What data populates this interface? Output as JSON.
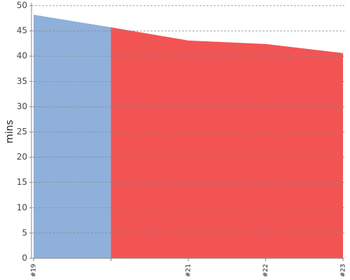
{
  "chart_data": {
    "type": "area",
    "y_label": "mins",
    "categories": [
      "#19",
      null,
      "#21",
      "#22",
      "#23"
    ],
    "values": [
      48.2,
      45.7,
      43.1,
      42.4,
      40.6
    ],
    "colors": [
      "#8fb0da",
      "#f25454",
      "#f25454",
      "#f25454",
      "#f25454"
    ],
    "ylim": [
      0,
      50
    ],
    "yticks": [
      0,
      5,
      10,
      15,
      20,
      25,
      30,
      35,
      40,
      45,
      50
    ],
    "grid": true
  }
}
